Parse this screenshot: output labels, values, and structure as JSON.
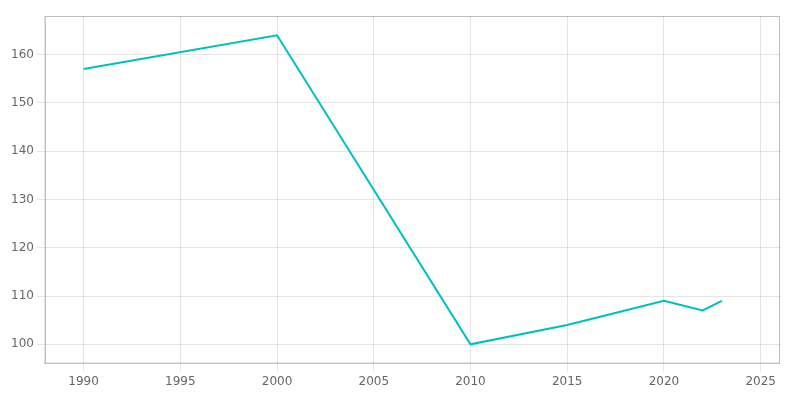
{
  "chart_data": {
    "type": "line",
    "x": [
      1990,
      2000,
      2010,
      2015,
      2020,
      2022,
      2023
    ],
    "values": [
      157,
      164,
      100,
      104,
      109,
      107,
      109
    ],
    "color": "#00BFBF",
    "xlim": [
      1988,
      2026
    ],
    "ylim": [
      96,
      168
    ],
    "xticks": [
      1990,
      1995,
      2000,
      2005,
      2010,
      2015,
      2020,
      2025
    ],
    "yticks": [
      100,
      110,
      120,
      130,
      140,
      150,
      160
    ],
    "grid": true
  }
}
